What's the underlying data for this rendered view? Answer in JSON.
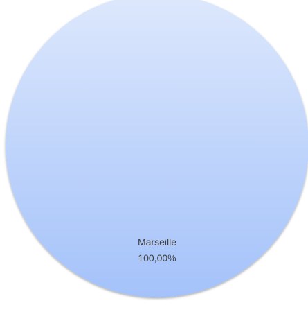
{
  "chart_data": {
    "type": "pie",
    "categories": [
      "Marseille"
    ],
    "values": [
      100
    ],
    "data_labels": [
      "100,00%"
    ],
    "colors": {
      "slice_fill_top": "#dde8fc",
      "slice_fill_bottom": "#a4c2fa",
      "label_text": "#404040",
      "background": "#ffffff"
    },
    "legend": "none"
  }
}
